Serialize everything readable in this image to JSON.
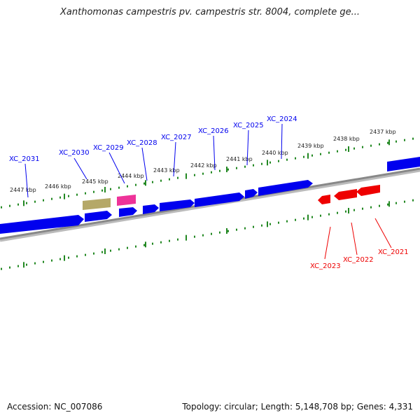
{
  "title": "Xanthomonas campestris pv. campestris str. 8004, complete ge...",
  "footer": {
    "accession": "Accession: NC_007086",
    "topology": "Topology: circular; Length: 5,148,708 bp; Genes: 4,331"
  },
  "colors": {
    "forward": "#0000ee",
    "reverse": "#ee0000",
    "olive": "#b5a868",
    "pink": "#ee3399",
    "backbone": "#888888",
    "ticks": "#228822"
  },
  "ticks": [
    {
      "label": "2447 kbp"
    },
    {
      "label": "2446 kbp"
    },
    {
      "label": "2445 kbp"
    },
    {
      "label": "2444 kbp"
    },
    {
      "label": "2443 kbp"
    },
    {
      "label": "2442 kbp"
    },
    {
      "label": "2441 kbp"
    },
    {
      "label": "2440 kbp"
    },
    {
      "label": "2439 kbp"
    },
    {
      "label": "2438 kbp"
    },
    {
      "label": "2437 kbp"
    }
  ],
  "genes": [
    {
      "label": "XC_2031",
      "strand": "+"
    },
    {
      "label": "XC_2030",
      "strand": "+"
    },
    {
      "label": "XC_2029",
      "strand": "+"
    },
    {
      "label": "XC_2028",
      "strand": "+"
    },
    {
      "label": "XC_2027",
      "strand": "+"
    },
    {
      "label": "XC_2026",
      "strand": "+"
    },
    {
      "label": "XC_2025",
      "strand": "+"
    },
    {
      "label": "XC_2024",
      "strand": "+"
    },
    {
      "label": "XC_2023",
      "strand": "-"
    },
    {
      "label": "XC_2022",
      "strand": "-"
    },
    {
      "label": "XC_2021",
      "strand": "-"
    }
  ]
}
